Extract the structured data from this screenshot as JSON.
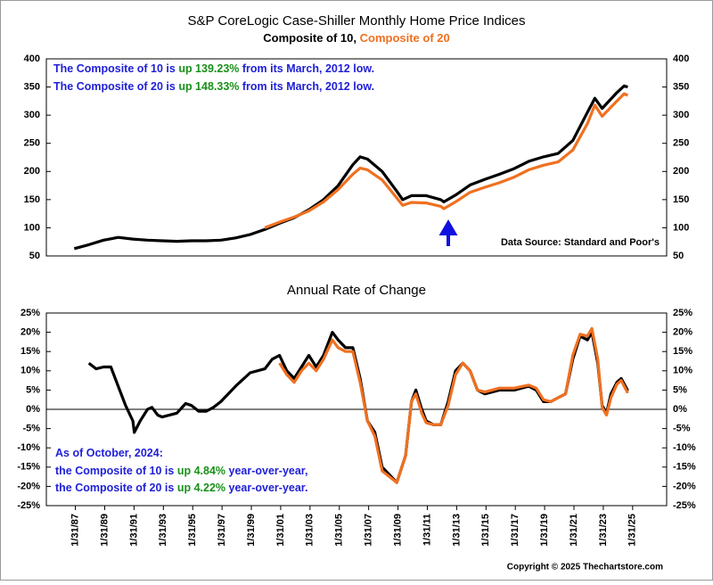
{
  "chart_data": [
    {
      "type": "line",
      "title": "S&P CoreLogic Case-Shiller Monthly Home Price Indices",
      "subtitle_separator": ", ",
      "xlim": [
        1985.1,
        2027.4
      ],
      "ylim": [
        50,
        400
      ],
      "yticks": [
        50,
        100,
        150,
        200,
        250,
        300,
        350,
        400
      ],
      "y2lim": [
        50,
        400
      ],
      "y2ticks": [
        50,
        100,
        150,
        200,
        250,
        300,
        350,
        400
      ],
      "annotations": [
        {
          "parts": [
            {
              "text": "The Composite of 10 is ",
              "color": "#2020d8"
            },
            {
              "text": "up 139.23%",
              "color": "#18901a"
            },
            {
              "text": " from its March, 2012 low.",
              "color": "#2020d8"
            }
          ]
        },
        {
          "parts": [
            {
              "text": "The Composite of 20 is ",
              "color": "#2020d8"
            },
            {
              "text": "up 148.33%",
              "color": "#18901a"
            },
            {
              "text": " from its March, 2012 low.",
              "color": "#2020d8"
            }
          ]
        }
      ],
      "source": "Data Source: Standard and Poor's",
      "series": [
        {
          "name": "Composite of 10",
          "color": "#000000",
          "x": [
            1987,
            1988,
            1989,
            1990,
            1991,
            1992,
            1993,
            1994,
            1995,
            1996,
            1997,
            1998,
            1999,
            2000,
            2001,
            2002,
            2003,
            2004,
            2005,
            2006,
            2006.5,
            2007,
            2008,
            2009,
            2009.4,
            2010,
            2011,
            2012,
            2012.2,
            2013,
            2014,
            2015,
            2016,
            2017,
            2018,
            2019,
            2020,
            2021,
            2022,
            2022.5,
            2023,
            2024,
            2024.5,
            2024.75
          ],
          "values": [
            63,
            70,
            78,
            83,
            80,
            78,
            77,
            76,
            77,
            77,
            78,
            82,
            88,
            97,
            108,
            118,
            132,
            150,
            175,
            212,
            226,
            222,
            200,
            165,
            150,
            157,
            157,
            150,
            146,
            158,
            176,
            186,
            195,
            205,
            218,
            226,
            232,
            255,
            305,
            330,
            312,
            340,
            352,
            350
          ]
        },
        {
          "name": "Composite of 20",
          "color": "#f07020",
          "x": [
            2000,
            2001,
            2002,
            2003,
            2004,
            2005,
            2006,
            2006.5,
            2007,
            2008,
            2009,
            2009.4,
            2010,
            2011,
            2012,
            2012.2,
            2013,
            2014,
            2015,
            2016,
            2017,
            2018,
            2019,
            2020,
            2021,
            2022,
            2022.5,
            2023,
            2024,
            2024.5,
            2024.75
          ],
          "values": [
            100,
            110,
            119,
            130,
            146,
            168,
            195,
            206,
            203,
            185,
            153,
            140,
            145,
            144,
            138,
            134,
            146,
            163,
            172,
            180,
            190,
            203,
            211,
            217,
            238,
            285,
            318,
            298,
            325,
            338,
            335
          ]
        }
      ]
    },
    {
      "type": "line",
      "title": "Annual Rate of Change",
      "zero_line": true,
      "xlim": [
        1985.1,
        2027.4
      ],
      "xticks": [
        {
          "value": 1987.08,
          "label": "1/31/87"
        },
        {
          "value": 1989.08,
          "label": "1/31/89"
        },
        {
          "value": 1991.08,
          "label": "1/31/91"
        },
        {
          "value": 1993.08,
          "label": "1/31/93"
        },
        {
          "value": 1995.08,
          "label": "1/31/95"
        },
        {
          "value": 1997.08,
          "label": "1/31/97"
        },
        {
          "value": 1999.08,
          "label": "1/31/99"
        },
        {
          "value": 2001.08,
          "label": "1/31/01"
        },
        {
          "value": 2003.08,
          "label": "1/31/03"
        },
        {
          "value": 2005.08,
          "label": "1/31/05"
        },
        {
          "value": 2007.08,
          "label": "1/31/07"
        },
        {
          "value": 2009.08,
          "label": "1/31/09"
        },
        {
          "value": 2011.08,
          "label": "1/31/11"
        },
        {
          "value": 2013.08,
          "label": "1/31/13"
        },
        {
          "value": 2015.08,
          "label": "1/31/15"
        },
        {
          "value": 2017.08,
          "label": "1/31/17"
        },
        {
          "value": 2019.08,
          "label": "1/31/19"
        },
        {
          "value": 2021.08,
          "label": "1/31/21"
        },
        {
          "value": 2023.08,
          "label": "1/31/23"
        },
        {
          "value": 2025.08,
          "label": "1/31/25"
        }
      ],
      "ylim": [
        -25,
        25
      ],
      "yticks": [
        {
          "value": -25,
          "label": "-25%"
        },
        {
          "value": -20,
          "label": "-20%"
        },
        {
          "value": -15,
          "label": "-15%"
        },
        {
          "value": -10,
          "label": "-10%"
        },
        {
          "value": -5,
          "label": "-5%"
        },
        {
          "value": 0,
          "label": "0%"
        },
        {
          "value": 5,
          "label": "5%"
        },
        {
          "value": 10,
          "label": "10%"
        },
        {
          "value": 15,
          "label": "15%"
        },
        {
          "value": 20,
          "label": "20%"
        },
        {
          "value": 25,
          "label": "25%"
        }
      ],
      "y2lim": [
        -25,
        25
      ],
      "y2ticks": [
        {
          "value": -25,
          "label": "-25%"
        },
        {
          "value": -20,
          "label": "-20%"
        },
        {
          "value": -15,
          "label": "-15%"
        },
        {
          "value": -10,
          "label": "-10%"
        },
        {
          "value": -5,
          "label": "-5%"
        },
        {
          "value": 0,
          "label": "0%"
        },
        {
          "value": 5,
          "label": "5%"
        },
        {
          "value": 10,
          "label": "10%"
        },
        {
          "value": 15,
          "label": "15%"
        },
        {
          "value": 20,
          "label": "20%"
        },
        {
          "value": 25,
          "label": "25%"
        }
      ],
      "annotations": [
        {
          "parts": [
            {
              "text": "As of October, 2024:",
              "color": "#2020d8"
            }
          ]
        },
        {
          "parts": [
            {
              "text": "the Composite of 10 is ",
              "color": "#2020d8"
            },
            {
              "text": "up 4.84%",
              "color": "#18901a"
            },
            {
              "text": " year-over-year,",
              "color": "#2020d8"
            }
          ]
        },
        {
          "parts": [
            {
              "text": "the Composite of 20 is ",
              "color": "#2020d8"
            },
            {
              "text": "up 4.22%",
              "color": "#18901a"
            },
            {
              "text": " year-over-year.",
              "color": "#2020d8"
            }
          ]
        }
      ],
      "series": [
        {
          "name": "Composite of 10",
          "color": "#000000",
          "x": [
            1988,
            1988.5,
            1989,
            1989.5,
            1990,
            1990.5,
            1991,
            1991.1,
            1991.5,
            1992,
            1992.3,
            1992.7,
            1993,
            1994,
            1994.6,
            1995,
            1995.5,
            1996,
            1996.5,
            1997,
            1998,
            1999,
            2000,
            2000.5,
            2001,
            2001.5,
            2002,
            2002.5,
            2003,
            2003.5,
            2004,
            2004.6,
            2005,
            2005.5,
            2006,
            2006.5,
            2007,
            2007.5,
            2008,
            2009,
            2009.6,
            2010,
            2010.3,
            2010.7,
            2011,
            2011.5,
            2012,
            2012.5,
            2013,
            2013.5,
            2014,
            2014.5,
            2015,
            2016,
            2017,
            2018,
            2018.5,
            2019,
            2019.5,
            2020,
            2020.5,
            2021,
            2021.5,
            2022,
            2022.3,
            2022.7,
            2023,
            2023.3,
            2023.6,
            2024,
            2024.3,
            2024.75
          ],
          "values": [
            12,
            10.5,
            11,
            11,
            6,
            1,
            -3,
            -6,
            -3,
            0,
            0.5,
            -1.5,
            -2,
            -1,
            1.5,
            1,
            -0.5,
            -0.5,
            0.5,
            2,
            6,
            9.5,
            10.5,
            13,
            14,
            10,
            8,
            11,
            14,
            11,
            14,
            20,
            18,
            16,
            16,
            8,
            -3,
            -6,
            -15,
            -19,
            -12,
            2,
            5,
            0,
            -3,
            -4,
            -4,
            2,
            10,
            12,
            10,
            5,
            4,
            5,
            5,
            6,
            5,
            2,
            2,
            3,
            4,
            13,
            19,
            18,
            20,
            12,
            1,
            -1,
            4,
            7,
            8,
            4.84
          ]
        },
        {
          "name": "Composite of 20",
          "color": "#f07020",
          "x": [
            2001,
            2001.5,
            2002,
            2002.5,
            2003,
            2003.5,
            2004,
            2004.6,
            2005,
            2005.5,
            2006,
            2006.5,
            2007,
            2007.5,
            2008,
            2009,
            2009.6,
            2010,
            2010.3,
            2010.7,
            2011,
            2011.5,
            2012,
            2012.5,
            2013,
            2013.5,
            2014,
            2014.5,
            2015,
            2016,
            2017,
            2018,
            2018.5,
            2019,
            2019.5,
            2020,
            2020.5,
            2021,
            2021.5,
            2022,
            2022.3,
            2022.7,
            2023,
            2023.3,
            2023.6,
            2024,
            2024.3,
            2024.75
          ],
          "values": [
            12,
            9,
            7,
            10,
            12,
            10,
            13,
            18,
            16,
            15,
            15,
            7,
            -3,
            -7,
            -16,
            -19,
            -12,
            2,
            4,
            -1,
            -3.5,
            -4,
            -4,
            1,
            9,
            12,
            10,
            5,
            4.5,
            5.5,
            5.5,
            6.3,
            5.5,
            2.5,
            2,
            3,
            4,
            14,
            19.5,
            19,
            21,
            13,
            0.5,
            -1.5,
            3,
            6.5,
            7.5,
            4.22
          ]
        }
      ]
    }
  ],
  "footer": "Copyright © 2025 Thechartstore.com"
}
